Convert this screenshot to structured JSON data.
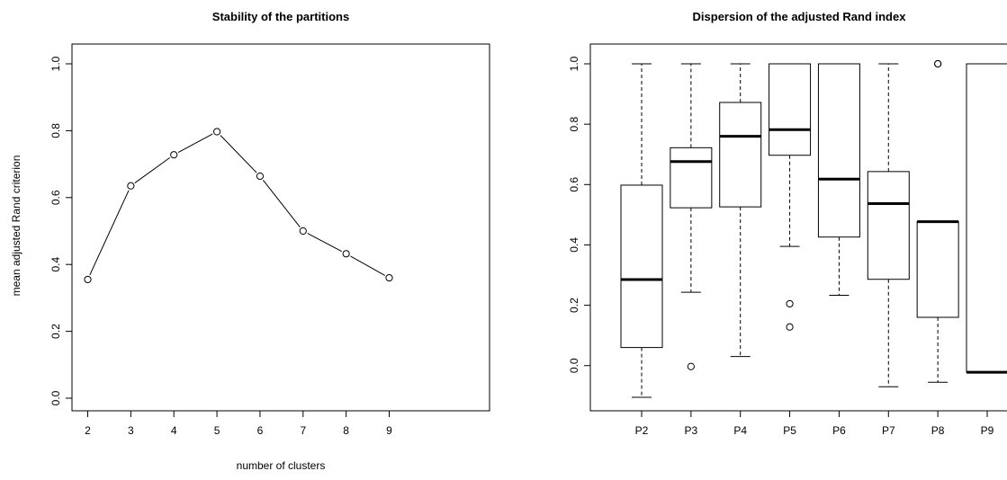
{
  "chart_data": [
    {
      "type": "line",
      "title": "Stability of the partitions",
      "xlabel": "number of clusters",
      "ylabel": "mean adjusted Rand criterion",
      "x": [
        2,
        3,
        4,
        5,
        6,
        7,
        8,
        9
      ],
      "y": [
        0.355,
        0.635,
        0.728,
        0.797,
        0.664,
        0.5,
        0.432,
        0.36
      ],
      "xlim": [
        2,
        9
      ],
      "ylim": [
        0,
        1
      ],
      "x_ticks": [
        "2",
        "3",
        "4",
        "5",
        "6",
        "7",
        "8",
        "9"
      ],
      "y_ticks": [
        "0.0",
        "0.2",
        "0.4",
        "0.6",
        "0.8",
        "1.0"
      ],
      "marker": "open-circle",
      "grid": false,
      "legend": "none"
    },
    {
      "type": "boxplot",
      "title": "Dispersion of the adjusted Rand index",
      "xlabel": "",
      "ylabel": "",
      "categories": [
        "P2",
        "P3",
        "P4",
        "P5",
        "P6",
        "P7",
        "P8",
        "P9"
      ],
      "boxes": [
        {
          "whisker_low": -0.105,
          "q1": 0.06,
          "median": 0.285,
          "q3": 0.598,
          "whisker_high": 1.0,
          "outliers": []
        },
        {
          "whisker_low": 0.243,
          "q1": 0.523,
          "median": 0.676,
          "q3": 0.722,
          "whisker_high": 1.0,
          "outliers": [
            -0.003
          ]
        },
        {
          "whisker_low": 0.03,
          "q1": 0.526,
          "median": 0.76,
          "q3": 0.872,
          "whisker_high": 1.0,
          "outliers": []
        },
        {
          "whisker_low": 0.395,
          "q1": 0.697,
          "median": 0.782,
          "q3": 1.0,
          "whisker_high": 1.0,
          "outliers": [
            0.205,
            0.128
          ]
        },
        {
          "whisker_low": 0.233,
          "q1": 0.426,
          "median": 0.618,
          "q3": 1.0,
          "whisker_high": 1.0,
          "outliers": []
        },
        {
          "whisker_low": -0.07,
          "q1": 0.286,
          "median": 0.537,
          "q3": 0.643,
          "whisker_high": 1.0,
          "outliers": []
        },
        {
          "whisker_low": -0.055,
          "q1": 0.16,
          "median": 0.477,
          "q3": 0.477,
          "whisker_high": 0.477,
          "outliers": [
            1.0,
            1.0
          ]
        },
        {
          "whisker_low": -0.022,
          "q1": -0.022,
          "median": -0.022,
          "q3": 1.0,
          "whisker_high": 1.0,
          "outliers": []
        }
      ],
      "ylim": [
        -0.105,
        1.0
      ],
      "y_ticks": [
        "0.0",
        "0.2",
        "0.4",
        "0.6",
        "0.8",
        "1.0"
      ],
      "grid": false,
      "legend": "none"
    }
  ]
}
